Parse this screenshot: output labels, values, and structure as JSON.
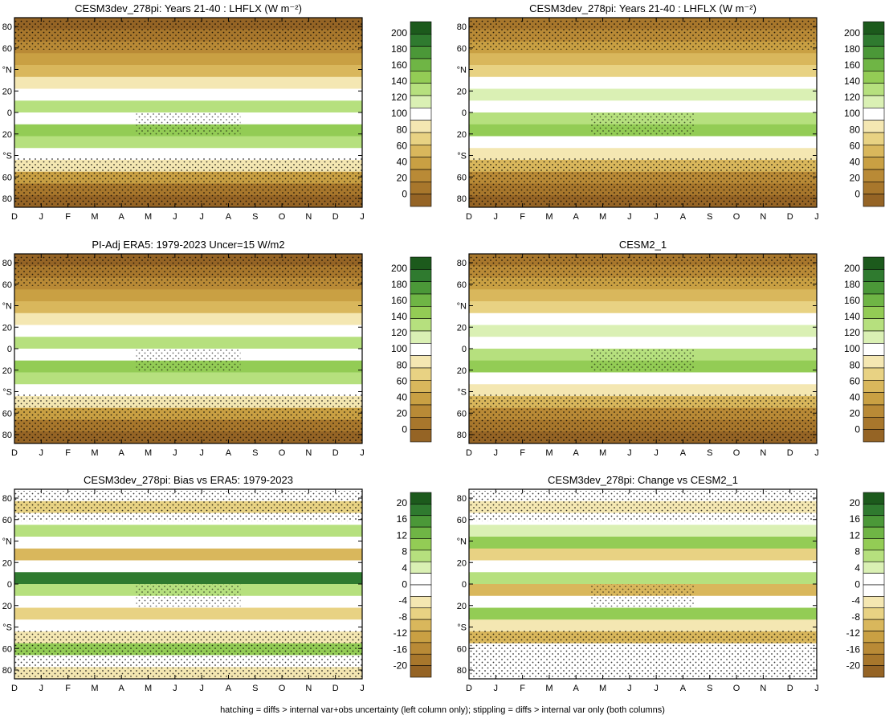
{
  "footnote": "hatching = diffs > internal var+obs uncertainty (left column only); stippling = diffs > internal var only (both columns)",
  "x_ticks": [
    "D",
    "J",
    "F",
    "M",
    "A",
    "M",
    "J",
    "J",
    "A",
    "S",
    "O",
    "N",
    "D",
    "J"
  ],
  "y_ticks": [
    "80",
    "60",
    "°N",
    "20",
    "0",
    "20",
    "°S",
    "60",
    "80"
  ],
  "colorbar_abs": {
    "labels": [
      "200",
      "180",
      "160",
      "140",
      "120",
      "100",
      "80",
      "60",
      "40",
      "20",
      "0"
    ],
    "colors": [
      "#1c5a1c",
      "#2f7a2f",
      "#4b9838",
      "#6fb545",
      "#93cc55",
      "#b6e07e",
      "#daf0b4",
      "#ffffff",
      "#f4e7b2",
      "#e8d283",
      "#d9b75c",
      "#c9a043",
      "#b98a36",
      "#a8772c",
      "#956425"
    ]
  },
  "colorbar_diff": {
    "labels": [
      "20",
      "16",
      "12",
      "8",
      "4",
      "0",
      "-4",
      "-8",
      "-12",
      "-16",
      "-20"
    ],
    "colors": [
      "#1c5a1c",
      "#2f7a2f",
      "#4b9838",
      "#6fb545",
      "#93cc55",
      "#b6e07e",
      "#daf0b4",
      "#ffffff",
      "#ffffff",
      "#f4e7b2",
      "#e8d283",
      "#d9b75c",
      "#c9a043",
      "#b98a36",
      "#a8772c",
      "#956425"
    ]
  },
  "chart_data": [
    {
      "type": "heatmap",
      "title": "CESM3dev_278pi: Years 21-40 : LHFLX (W m⁻²)",
      "units": "W m-2",
      "kind": "abs",
      "hatching": true,
      "stippling": true
    },
    {
      "type": "heatmap",
      "title": "CESM3dev_278pi: Years 21-40 : LHFLX (W m⁻²)",
      "units": "W m-2",
      "kind": "abs",
      "hatching": false,
      "stippling": true
    },
    {
      "type": "heatmap",
      "title": "PI-Adj ERA5: 1979-2023 Uncer=15 W/m2",
      "kind": "abs",
      "hatching": true,
      "stippling": true
    },
    {
      "type": "heatmap",
      "title": "CESM2_1",
      "kind": "abs",
      "hatching": false,
      "stippling": true
    },
    {
      "type": "heatmap",
      "title": "CESM3dev_278pi: Bias vs ERA5: 1979-2023",
      "kind": "diff",
      "hatching": true,
      "stippling": true
    },
    {
      "type": "heatmap",
      "title": "CESM3dev_278pi: Change vs CESM2_1",
      "kind": "diff",
      "hatching": false,
      "stippling": true
    }
  ]
}
